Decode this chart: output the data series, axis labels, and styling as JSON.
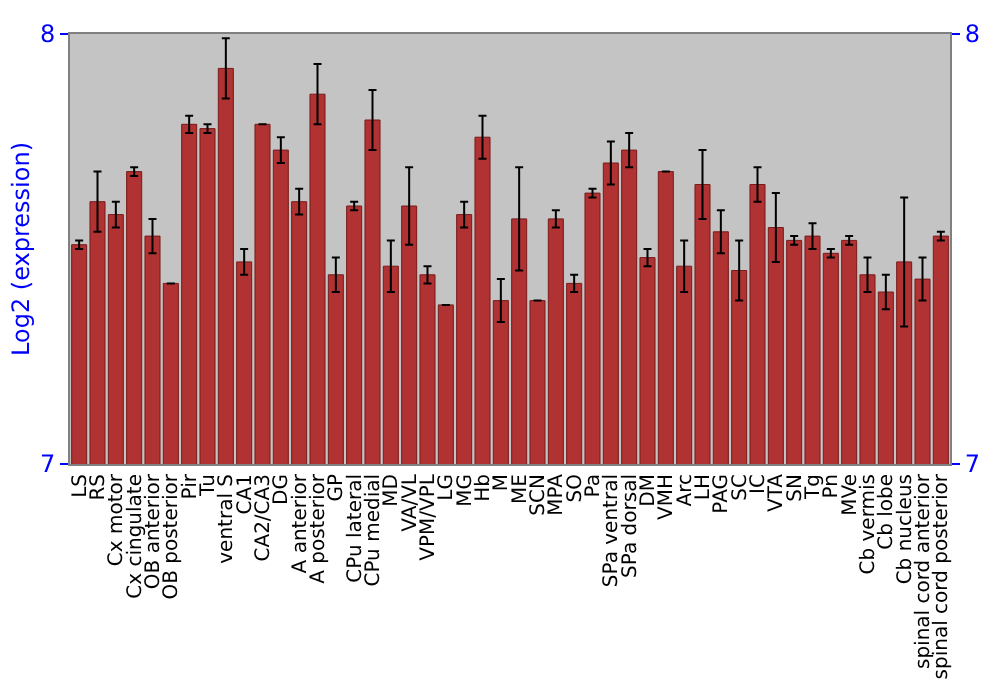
{
  "chart_data": {
    "type": "bar",
    "ylabel": "Log2 (expression)",
    "categories": [
      "LS",
      "RS",
      "Cx motor",
      "Cx cingulate",
      "OB anterior",
      "OB posterior",
      "Pir",
      "Tu",
      "ventral S",
      "CA1",
      "CA2/CA3",
      "DG",
      "A anterior",
      "A posterior",
      "GP",
      "CPu lateral",
      "CPu medial",
      "MD",
      "VA/VL",
      "VPM/VPL",
      "LG",
      "MG",
      "Hb",
      "M",
      "ME",
      "SCN",
      "MPA",
      "SO",
      "Pa",
      "SPa ventral",
      "SPa dorsal",
      "DM",
      "VMH",
      "Arc",
      "LH",
      "PAG",
      "SC",
      "IC",
      "VTA",
      "SN",
      "Tg",
      "Pn",
      "MVe",
      "Cb vermis",
      "Cb lobe",
      "Cb nucleus",
      "spinal cord anterior",
      "spinal cord posterior"
    ],
    "values": [
      7.51,
      7.61,
      7.58,
      7.68,
      7.53,
      7.42,
      7.79,
      7.78,
      7.92,
      7.47,
      7.79,
      7.73,
      7.61,
      7.86,
      7.44,
      7.6,
      7.8,
      7.46,
      7.6,
      7.44,
      7.37,
      7.58,
      7.76,
      7.38,
      7.57,
      7.38,
      7.57,
      7.42,
      7.63,
      7.7,
      7.73,
      7.48,
      7.68,
      7.46,
      7.65,
      7.54,
      7.45,
      7.65,
      7.55,
      7.52,
      7.53,
      7.49,
      7.52,
      7.44,
      7.4,
      7.47,
      7.43,
      7.53
    ],
    "errors": [
      0.01,
      0.07,
      0.03,
      0.01,
      0.04,
      null,
      0.02,
      0.01,
      0.07,
      0.03,
      null,
      0.03,
      0.03,
      0.07,
      0.04,
      0.01,
      0.07,
      0.06,
      0.09,
      0.02,
      null,
      0.03,
      0.05,
      0.05,
      0.12,
      null,
      0.02,
      0.02,
      0.01,
      0.05,
      0.04,
      0.02,
      null,
      0.06,
      0.08,
      0.05,
      0.07,
      0.04,
      0.08,
      0.01,
      0.03,
      0.01,
      0.01,
      0.04,
      0.04,
      0.15,
      0.05,
      0.01
    ],
    "color": "#b03232",
    "ylim": [
      7,
      8
    ],
    "yticks": [
      7,
      8
    ],
    "y2lim": [
      7,
      8
    ],
    "y2ticks": [
      7,
      8
    ],
    "legend": false
  }
}
